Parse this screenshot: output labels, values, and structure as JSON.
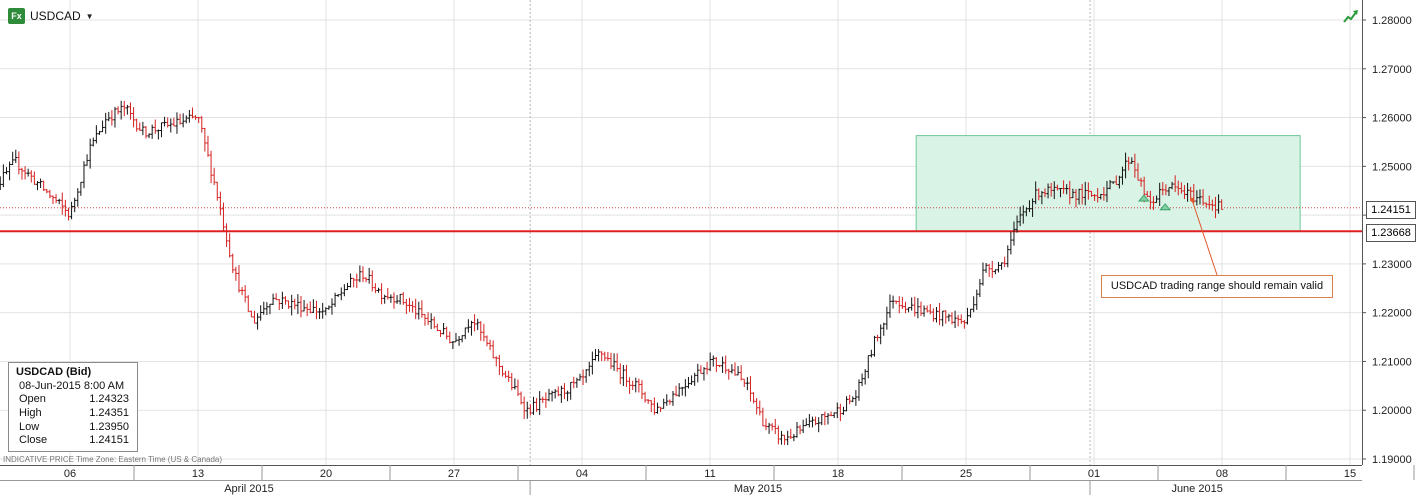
{
  "header": {
    "symbol": "USDCAD",
    "icon_text": "Fx"
  },
  "info_box": {
    "title": "USDCAD (Bid)",
    "datetime": "08-Jun-2015 8:00 AM",
    "rows": [
      {
        "label": "Open",
        "value": "1.24323"
      },
      {
        "label": "High",
        "value": "1.24351"
      },
      {
        "label": "Low",
        "value": "1.23950"
      },
      {
        "label": "Close",
        "value": "1.24151"
      }
    ]
  },
  "footer_note": "INDICATIVE PRICE   Time Zone: Eastern Time (US & Canada)",
  "callout_text": "USDCAD trading range should remain valid",
  "current_price_label": "1.24151",
  "support_price_label": "1.23668",
  "colors": {
    "up": "#111111",
    "down": "#d42020",
    "support": "#e02020",
    "range_fill": "#d9f3e6",
    "range_border": "#6fc79b"
  },
  "chart_data": {
    "type": "ohlc",
    "y_range": [
      1.188,
      1.284
    ],
    "y_ticks": [
      "1.19000",
      "1.20000",
      "1.21000",
      "1.22000",
      "1.23000",
      "1.24000",
      "1.25000",
      "1.26000",
      "1.27000",
      "1.28000"
    ],
    "x_tick_labels": [
      "06",
      "13",
      "20",
      "27",
      "04",
      "11",
      "18",
      "25",
      "01",
      "08",
      "15"
    ],
    "month_labels": [
      "April 2015",
      "May 2015",
      "June 2015"
    ],
    "current_price": 1.24151,
    "support_level": 1.23668,
    "range_box": {
      "high": 1.2563,
      "low": 1.2367,
      "from": "2015-05-22",
      "to": "2015-06-12"
    },
    "anchors": [
      [
        "2015-04-01",
        1.248
      ],
      [
        "2015-04-02",
        1.246
      ],
      [
        "2015-04-03",
        1.251
      ],
      [
        "2015-04-06",
        1.24
      ],
      [
        "2015-04-07",
        1.253
      ],
      [
        "2015-04-08",
        1.26
      ],
      [
        "2015-04-09",
        1.262
      ],
      [
        "2015-04-10",
        1.257
      ],
      [
        "2015-04-13",
        1.26
      ],
      [
        "2015-04-14",
        1.245
      ],
      [
        "2015-04-15",
        1.228
      ],
      [
        "2015-04-16",
        1.218
      ],
      [
        "2015-04-17",
        1.223
      ],
      [
        "2015-04-20",
        1.22
      ],
      [
        "2015-04-21",
        1.225
      ],
      [
        "2015-04-22",
        1.228
      ],
      [
        "2015-04-23",
        1.224
      ],
      [
        "2015-04-24",
        1.223
      ],
      [
        "2015-04-27",
        1.214
      ],
      [
        "2015-04-28",
        1.219
      ],
      [
        "2015-04-29",
        1.212
      ],
      [
        "2015-04-30",
        1.206
      ],
      [
        "2015-05-01",
        1.2
      ],
      [
        "2015-05-04",
        1.206
      ],
      [
        "2015-05-05",
        1.212
      ],
      [
        "2015-05-06",
        1.208
      ],
      [
        "2015-05-07",
        1.205
      ],
      [
        "2015-05-08",
        1.2
      ],
      [
        "2015-05-11",
        1.21
      ],
      [
        "2015-05-12",
        1.209
      ],
      [
        "2015-05-13",
        1.205
      ],
      [
        "2015-05-14",
        1.197
      ],
      [
        "2015-05-15",
        1.194
      ],
      [
        "2015-05-18",
        1.2
      ],
      [
        "2015-05-19",
        1.203
      ],
      [
        "2015-05-20",
        1.214
      ],
      [
        "2015-05-21",
        1.223
      ],
      [
        "2015-05-22",
        1.221
      ],
      [
        "2015-05-25",
        1.218
      ],
      [
        "2015-05-26",
        1.229
      ],
      [
        "2015-05-27",
        1.23
      ],
      [
        "2015-05-28",
        1.24
      ],
      [
        "2015-05-29",
        1.245
      ],
      [
        "2015-06-01",
        1.244
      ],
      [
        "2015-06-02",
        1.246
      ],
      [
        "2015-06-03",
        1.252
      ],
      [
        "2015-06-04",
        1.242
      ],
      [
        "2015-06-05",
        1.246
      ],
      [
        "2015-06-08",
        1.2415
      ]
    ]
  }
}
